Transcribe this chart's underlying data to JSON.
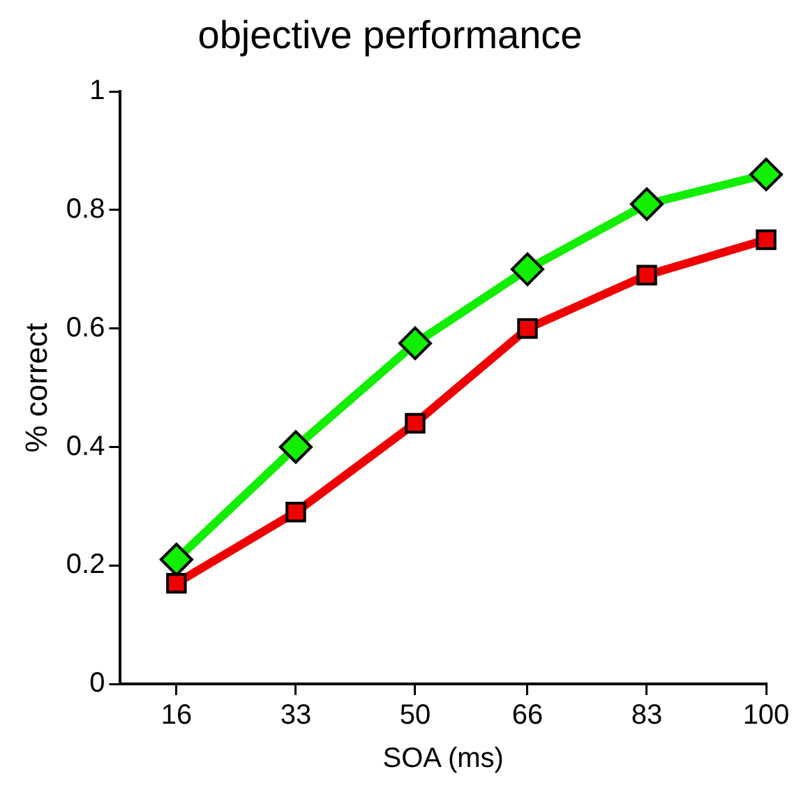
{
  "chart_data": {
    "type": "line",
    "title": "objective performance",
    "xlabel": "SOA (ms)",
    "ylabel": "% correct",
    "x": [
      16,
      33,
      50,
      66,
      83,
      100
    ],
    "xlim": [
      8,
      100
    ],
    "xticks": [
      16,
      33,
      50,
      66,
      83,
      100
    ],
    "ylim": [
      0,
      1
    ],
    "yticks": [
      0,
      0.2,
      0.4,
      0.6,
      0.8,
      1
    ],
    "grid": false,
    "legend": false,
    "series": [
      {
        "color": "#11ee00",
        "marker": "diamond",
        "values": [
          0.21,
          0.4,
          0.575,
          0.7,
          0.81,
          0.86
        ]
      },
      {
        "color": "#ee0000",
        "marker": "square",
        "values": [
          0.17,
          0.29,
          0.44,
          0.6,
          0.69,
          0.75
        ]
      }
    ]
  }
}
